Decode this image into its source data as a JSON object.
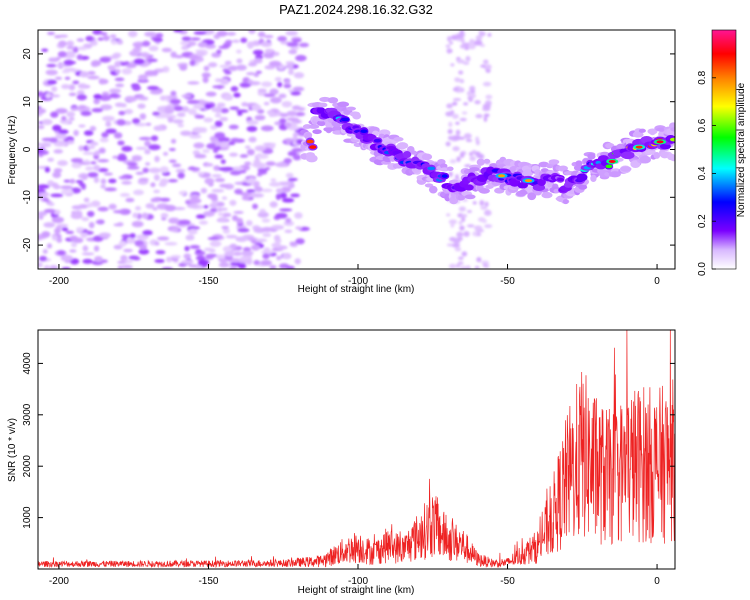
{
  "figure": {
    "title": "PAZ1.2024.298.16.32.G32"
  },
  "chart_data": [
    {
      "type": "heatmap",
      "title": "PAZ1.2024.298.16.32.G32",
      "xlabel": "Height of straight line (km)",
      "ylabel": "Frequency (Hz)",
      "xlim": [
        -207,
        6
      ],
      "ylim": [
        -25,
        25
      ],
      "x_ticks": [
        -200,
        -150,
        -100,
        -50,
        0
      ],
      "y_ticks": [
        -20,
        -10,
        0,
        10,
        20
      ],
      "colorbar": {
        "label": "Normalized spectral amplitude",
        "range": [
          0,
          1
        ],
        "ticks": [
          0.0,
          0.2,
          0.4,
          0.6,
          0.8
        ],
        "tick_labels": [
          "0.0",
          "0.2",
          "0.4",
          "0.6",
          "0.8"
        ],
        "colormap": [
          "#ffffff",
          "#cc99ff",
          "#7a00ff",
          "#0000ff",
          "#00ffff",
          "#00ff00",
          "#ffff00",
          "#ff8000",
          "#ff0000",
          "#ff1493"
        ]
      },
      "signal_track": {
        "description_points": [
          [
            -115,
            7
          ],
          [
            -110,
            7.5
          ],
          [
            -105,
            6
          ],
          [
            -100,
            4
          ],
          [
            -95,
            1.5
          ],
          [
            -90,
            0
          ],
          [
            -85,
            -1.5
          ],
          [
            -80,
            -3
          ],
          [
            -75,
            -5
          ],
          [
            -70,
            -7
          ],
          [
            -65,
            -7.5
          ],
          [
            -60,
            -6
          ],
          [
            -55,
            -5
          ],
          [
            -50,
            -5.5
          ],
          [
            -45,
            -6.5
          ],
          [
            -40,
            -7
          ],
          [
            -35,
            -6
          ],
          [
            -30,
            -8
          ],
          [
            -25,
            -5
          ],
          [
            -20,
            -3
          ],
          [
            -15,
            -2.5
          ],
          [
            -10,
            -0.5
          ],
          [
            -5,
            1
          ],
          [
            0,
            1.5
          ],
          [
            5,
            1.5
          ]
        ],
        "peak_amplitudes": [
          0.35,
          0.4,
          0.35,
          0.3,
          0.3,
          0.32,
          0.3,
          0.28,
          0.35,
          0.3,
          0.25,
          0.2,
          0.25,
          0.3,
          0.3,
          0.25,
          0.2,
          0.2,
          0.4,
          0.5,
          0.9,
          0.6,
          0.85,
          0.9,
          0.85
        ]
      }
    },
    {
      "type": "line",
      "xlabel": "Height of straight line (km)",
      "ylabel": "SNR (10 * v/v)",
      "xlim": [
        -207,
        6
      ],
      "ylim": [
        0,
        4650
      ],
      "x_ticks": [
        -200,
        -150,
        -100,
        -50,
        0
      ],
      "y_ticks": [
        1000,
        2000,
        3000,
        4000
      ],
      "color": "#ee2222",
      "envelope": {
        "x": [
          -207,
          -150,
          -125,
          -112,
          -105,
          -100,
          -95,
          -90,
          -85,
          -80,
          -75,
          -70,
          -65,
          -60,
          -55,
          -50,
          -45,
          -40,
          -35,
          -30,
          -25,
          -20,
          -15,
          -10,
          -5,
          0,
          6
        ],
        "y": [
          130,
          140,
          160,
          250,
          550,
          700,
          500,
          750,
          600,
          1000,
          1400,
          900,
          750,
          300,
          180,
          200,
          450,
          700,
          1600,
          2800,
          3600,
          3000,
          2800,
          3200,
          3300,
          3200,
          3400
        ]
      }
    }
  ]
}
